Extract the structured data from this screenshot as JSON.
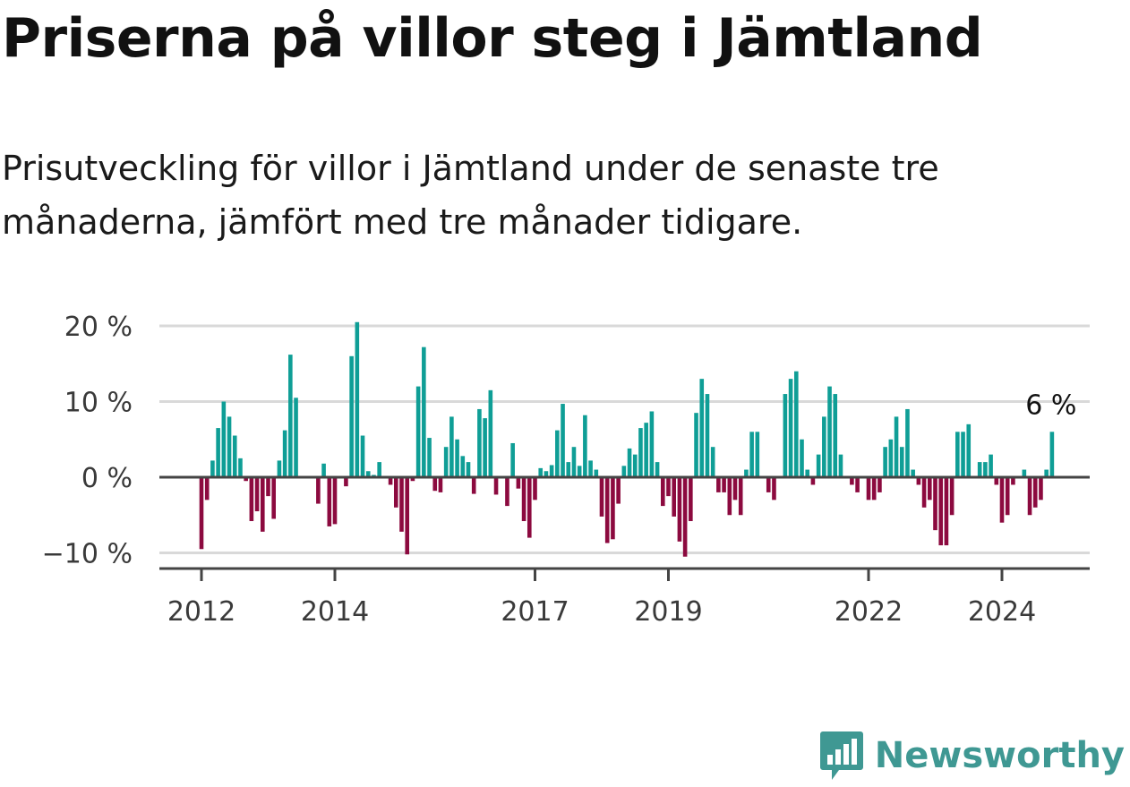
{
  "header": {
    "title": "Priserna på villor steg i Jämtland",
    "subtitle": "Prisutveckling för villor i Jämtland under de senaste tre månaderna, jämfört med tre månader tidigare."
  },
  "brand": {
    "name": "Newsworthy",
    "logo_icon": "bar-chart-speech-bubble-icon",
    "color": "#3f9893"
  },
  "colors": {
    "positive": "#0f9e96",
    "negative": "#8c0a3f",
    "gridline": "#d9d9d9",
    "axis": "#444444"
  },
  "chart_data": {
    "type": "bar",
    "title": "Priserna på villor steg i Jämtland",
    "xlabel": "",
    "ylabel": "",
    "ylim": [
      -12,
      21
    ],
    "yticks": [
      -10,
      0,
      10,
      20
    ],
    "ytick_labels": [
      "−10 %",
      "0 %",
      "10 %",
      "20 %"
    ],
    "xticks": [
      "2012",
      "2014",
      "2017",
      "2019",
      "2022",
      "2024"
    ],
    "grid": true,
    "x_start": "2012-01",
    "x_end": "2024-09",
    "end_label": "6 %",
    "series": [
      {
        "values": [
          -9.5,
          -3,
          2.2,
          6.5,
          10,
          8,
          5.5,
          2.5,
          -0.5,
          -5.8,
          -4.5,
          -7.2,
          -2.5,
          -5.5,
          2.2,
          6.2,
          16.2,
          10.5,
          0,
          0,
          0,
          -3.5,
          1.8,
          -6.5,
          -6.2,
          0,
          -1.2,
          16,
          20.5,
          5.5,
          0.8,
          0.3,
          2,
          0,
          -1,
          -4,
          -7.2,
          -10.2,
          -0.5,
          12,
          17.2,
          5.2,
          -1.8,
          -2,
          4,
          8,
          5,
          2.8,
          2,
          -2.2,
          9,
          7.8,
          11.5,
          -2.3,
          0,
          -3.8,
          4.5,
          -1.5,
          -5.8,
          -8,
          -3,
          1.2,
          0.8,
          1.6,
          6.2,
          9.7,
          2,
          4,
          1.5,
          8.2,
          2.2,
          1,
          -5.2,
          -8.7,
          -8.2,
          -3.5,
          1.5,
          3.8,
          3,
          6.5,
          7.2,
          8.7,
          2,
          -3.8,
          -2.5,
          -5.2,
          -8.5,
          -10.5,
          -5.8,
          8.5,
          13,
          11,
          4,
          -2,
          -2,
          -5,
          -3,
          -5,
          1,
          6,
          6,
          0,
          -2,
          -3,
          0,
          11,
          13,
          14,
          5,
          1,
          -1,
          3,
          8,
          12,
          11,
          3,
          0,
          -1,
          -2,
          0,
          -3,
          -3,
          -2,
          4,
          5,
          8,
          4,
          9,
          1,
          -1,
          -4,
          -3,
          -7,
          -9,
          -9,
          -5,
          6,
          6,
          7,
          0,
          2,
          2,
          3,
          -1,
          -6,
          -5,
          -1,
          0,
          1,
          -5,
          -4,
          -3,
          1,
          6
        ]
      }
    ]
  }
}
